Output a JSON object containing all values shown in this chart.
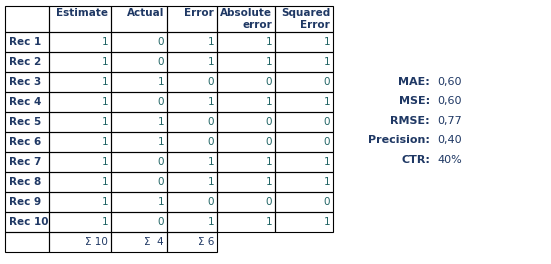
{
  "rows": [
    [
      "Rec 1",
      1,
      0,
      1,
      1,
      1
    ],
    [
      "Rec 2",
      1,
      0,
      1,
      1,
      1
    ],
    [
      "Rec 3",
      1,
      1,
      0,
      0,
      0
    ],
    [
      "Rec 4",
      1,
      0,
      1,
      1,
      1
    ],
    [
      "Rec 5",
      1,
      1,
      0,
      0,
      0
    ],
    [
      "Rec 6",
      1,
      1,
      0,
      0,
      0
    ],
    [
      "Rec 7",
      1,
      0,
      1,
      1,
      1
    ],
    [
      "Rec 8",
      1,
      0,
      1,
      1,
      1
    ],
    [
      "Rec 9",
      1,
      1,
      0,
      0,
      0
    ],
    [
      "Rec 10",
      1,
      0,
      1,
      1,
      1
    ]
  ],
  "col_headers_line1": [
    "",
    "Estimate",
    "Actual",
    "Error",
    "Absolute",
    "Squared"
  ],
  "col_headers_line2": [
    "",
    "",
    "",
    "",
    "error",
    "Error"
  ],
  "sum_row": [
    "",
    "Σ 10",
    "Σ  4",
    "Σ 6",
    "",
    ""
  ],
  "metrics": [
    [
      "MAE:",
      "0,60"
    ],
    [
      "MSE:",
      "0,60"
    ],
    [
      "RMSE:",
      "0,77"
    ],
    [
      "Precision:",
      "0,40"
    ],
    [
      "CTR:",
      "40%"
    ]
  ],
  "header_color": "#1f3864",
  "data_color": "#1f6464",
  "sum_color": "#1f3864",
  "metrics_label_color": "#1f3864",
  "metrics_value_color": "#1f3864",
  "fig_bg": "#ffffff",
  "border_color": "#000000"
}
